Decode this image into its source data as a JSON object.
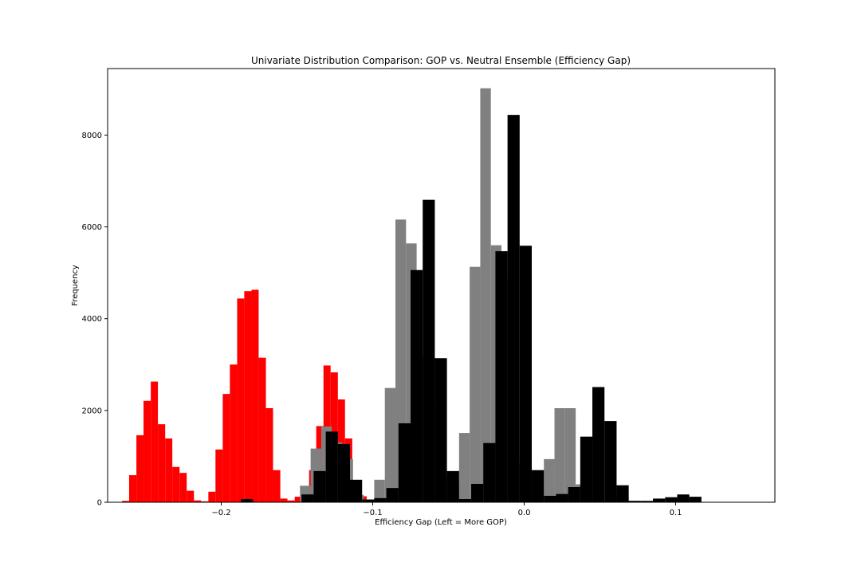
{
  "chart_data": {
    "type": "bar",
    "subtype": "overlaid-histogram",
    "title": "Univariate Distribution Comparison: GOP vs. Neutral Ensemble (Efficiency Gap)",
    "xlabel": "Efficiency Gap (Left = More GOP)",
    "ylabel": "Frequency",
    "xlim": [
      -0.275,
      0.1655
    ],
    "ylim": [
      0,
      9450
    ],
    "xticks": [
      -0.2,
      -0.1,
      0.0,
      0.1
    ],
    "xtick_labels": [
      "−0.2",
      "−0.1",
      "0.0",
      "0.1"
    ],
    "yticks": [
      0,
      2000,
      4000,
      6000,
      8000
    ],
    "ytick_labels": [
      "0",
      "2000",
      "4000",
      "6000",
      "8000"
    ],
    "grid": false,
    "legend": "none",
    "series": [
      {
        "color": "#ff0000",
        "bins": [
          [
            -0.2655,
            -0.2608,
            30
          ],
          [
            -0.2608,
            -0.256,
            590
          ],
          [
            -0.256,
            -0.2513,
            1460
          ],
          [
            -0.2513,
            -0.2465,
            2210
          ],
          [
            -0.2465,
            -0.2418,
            2630
          ],
          [
            -0.2418,
            -0.237,
            1700
          ],
          [
            -0.237,
            -0.2323,
            1390
          ],
          [
            -0.2323,
            -0.2275,
            770
          ],
          [
            -0.2275,
            -0.2228,
            640
          ],
          [
            -0.2228,
            -0.218,
            250
          ],
          [
            -0.218,
            -0.2133,
            40
          ],
          [
            -0.2133,
            -0.2085,
            20
          ],
          [
            -0.2085,
            -0.2038,
            230
          ],
          [
            -0.2038,
            -0.199,
            1150
          ],
          [
            -0.199,
            -0.1943,
            2360
          ],
          [
            -0.1943,
            -0.1895,
            3000
          ],
          [
            -0.1895,
            -0.1848,
            4440
          ],
          [
            -0.1848,
            -0.18,
            4600
          ],
          [
            -0.18,
            -0.1753,
            4630
          ],
          [
            -0.1753,
            -0.1705,
            3150
          ],
          [
            -0.1705,
            -0.1658,
            2050
          ],
          [
            -0.1658,
            -0.161,
            700
          ],
          [
            -0.161,
            -0.1563,
            80
          ],
          [
            -0.1563,
            -0.1515,
            40
          ],
          [
            -0.1515,
            -0.1468,
            120
          ],
          [
            -0.1468,
            -0.142,
            230
          ],
          [
            -0.142,
            -0.1373,
            700
          ],
          [
            -0.1373,
            -0.1325,
            1660
          ],
          [
            -0.1325,
            -0.1278,
            2980
          ],
          [
            -0.1278,
            -0.123,
            2830
          ],
          [
            -0.123,
            -0.1183,
            2240
          ],
          [
            -0.1183,
            -0.1135,
            1390
          ],
          [
            -0.1135,
            -0.1088,
            310
          ],
          [
            -0.1088,
            -0.104,
            130
          ],
          [
            -0.104,
            -0.0993,
            20
          ]
        ]
      },
      {
        "color": "#808080",
        "bins": [
          [
            -0.148,
            -0.141,
            360
          ],
          [
            -0.141,
            -0.134,
            1170
          ],
          [
            -0.134,
            -0.127,
            1650
          ],
          [
            -0.127,
            -0.12,
            1300
          ],
          [
            -0.12,
            -0.113,
            940
          ],
          [
            -0.113,
            -0.106,
            160
          ],
          [
            -0.106,
            -0.099,
            60
          ],
          [
            -0.099,
            -0.092,
            490
          ],
          [
            -0.092,
            -0.085,
            2490
          ],
          [
            -0.085,
            -0.078,
            6160
          ],
          [
            -0.078,
            -0.071,
            5640
          ],
          [
            -0.071,
            -0.064,
            3150
          ],
          [
            -0.064,
            -0.057,
            2120
          ],
          [
            -0.057,
            -0.05,
            580
          ],
          [
            -0.05,
            -0.043,
            410
          ],
          [
            -0.043,
            -0.036,
            1510
          ],
          [
            -0.036,
            -0.029,
            5130
          ],
          [
            -0.029,
            -0.022,
            9020
          ],
          [
            -0.022,
            -0.015,
            5600
          ],
          [
            -0.015,
            -0.008,
            4870
          ],
          [
            -0.008,
            -0.001,
            840
          ],
          [
            -0.001,
            0.006,
            200
          ],
          [
            0.006,
            0.013,
            270
          ],
          [
            0.013,
            0.02,
            940
          ],
          [
            0.02,
            0.027,
            2050
          ],
          [
            0.027,
            0.034,
            2050
          ],
          [
            0.034,
            0.041,
            390
          ],
          [
            0.041,
            0.048,
            60
          ],
          [
            0.048,
            0.055,
            30
          ],
          [
            0.055,
            0.062,
            170
          ],
          [
            0.062,
            0.069,
            110
          ],
          [
            0.069,
            0.076,
            30
          ]
        ]
      },
      {
        "color": "#000000",
        "bins": [
          [
            -0.187,
            -0.179,
            70
          ],
          [
            -0.147,
            -0.139,
            170
          ],
          [
            -0.139,
            -0.131,
            680
          ],
          [
            -0.131,
            -0.123,
            1540
          ],
          [
            -0.123,
            -0.115,
            1270
          ],
          [
            -0.115,
            -0.107,
            490
          ],
          [
            -0.107,
            -0.099,
            60
          ],
          [
            -0.099,
            -0.091,
            90
          ],
          [
            -0.091,
            -0.083,
            310
          ],
          [
            -0.083,
            -0.075,
            1720
          ],
          [
            -0.075,
            -0.067,
            5060
          ],
          [
            -0.067,
            -0.059,
            6590
          ],
          [
            -0.059,
            -0.051,
            3140
          ],
          [
            -0.051,
            -0.043,
            680
          ],
          [
            -0.043,
            -0.035,
            70
          ],
          [
            -0.035,
            -0.027,
            400
          ],
          [
            -0.027,
            -0.019,
            1290
          ],
          [
            -0.019,
            -0.011,
            5470
          ],
          [
            -0.011,
            -0.003,
            8440
          ],
          [
            -0.003,
            0.005,
            5590
          ],
          [
            0.005,
            0.013,
            700
          ],
          [
            0.013,
            0.021,
            140
          ],
          [
            0.021,
            0.029,
            180
          ],
          [
            0.029,
            0.037,
            330
          ],
          [
            0.037,
            0.045,
            1430
          ],
          [
            0.045,
            0.053,
            2510
          ],
          [
            0.053,
            0.061,
            1770
          ],
          [
            0.061,
            0.069,
            370
          ],
          [
            0.069,
            0.077,
            30
          ],
          [
            0.077,
            0.085,
            30
          ],
          [
            0.085,
            0.093,
            80
          ],
          [
            0.093,
            0.101,
            110
          ],
          [
            0.101,
            0.109,
            170
          ],
          [
            0.109,
            0.117,
            120
          ]
        ]
      }
    ]
  }
}
